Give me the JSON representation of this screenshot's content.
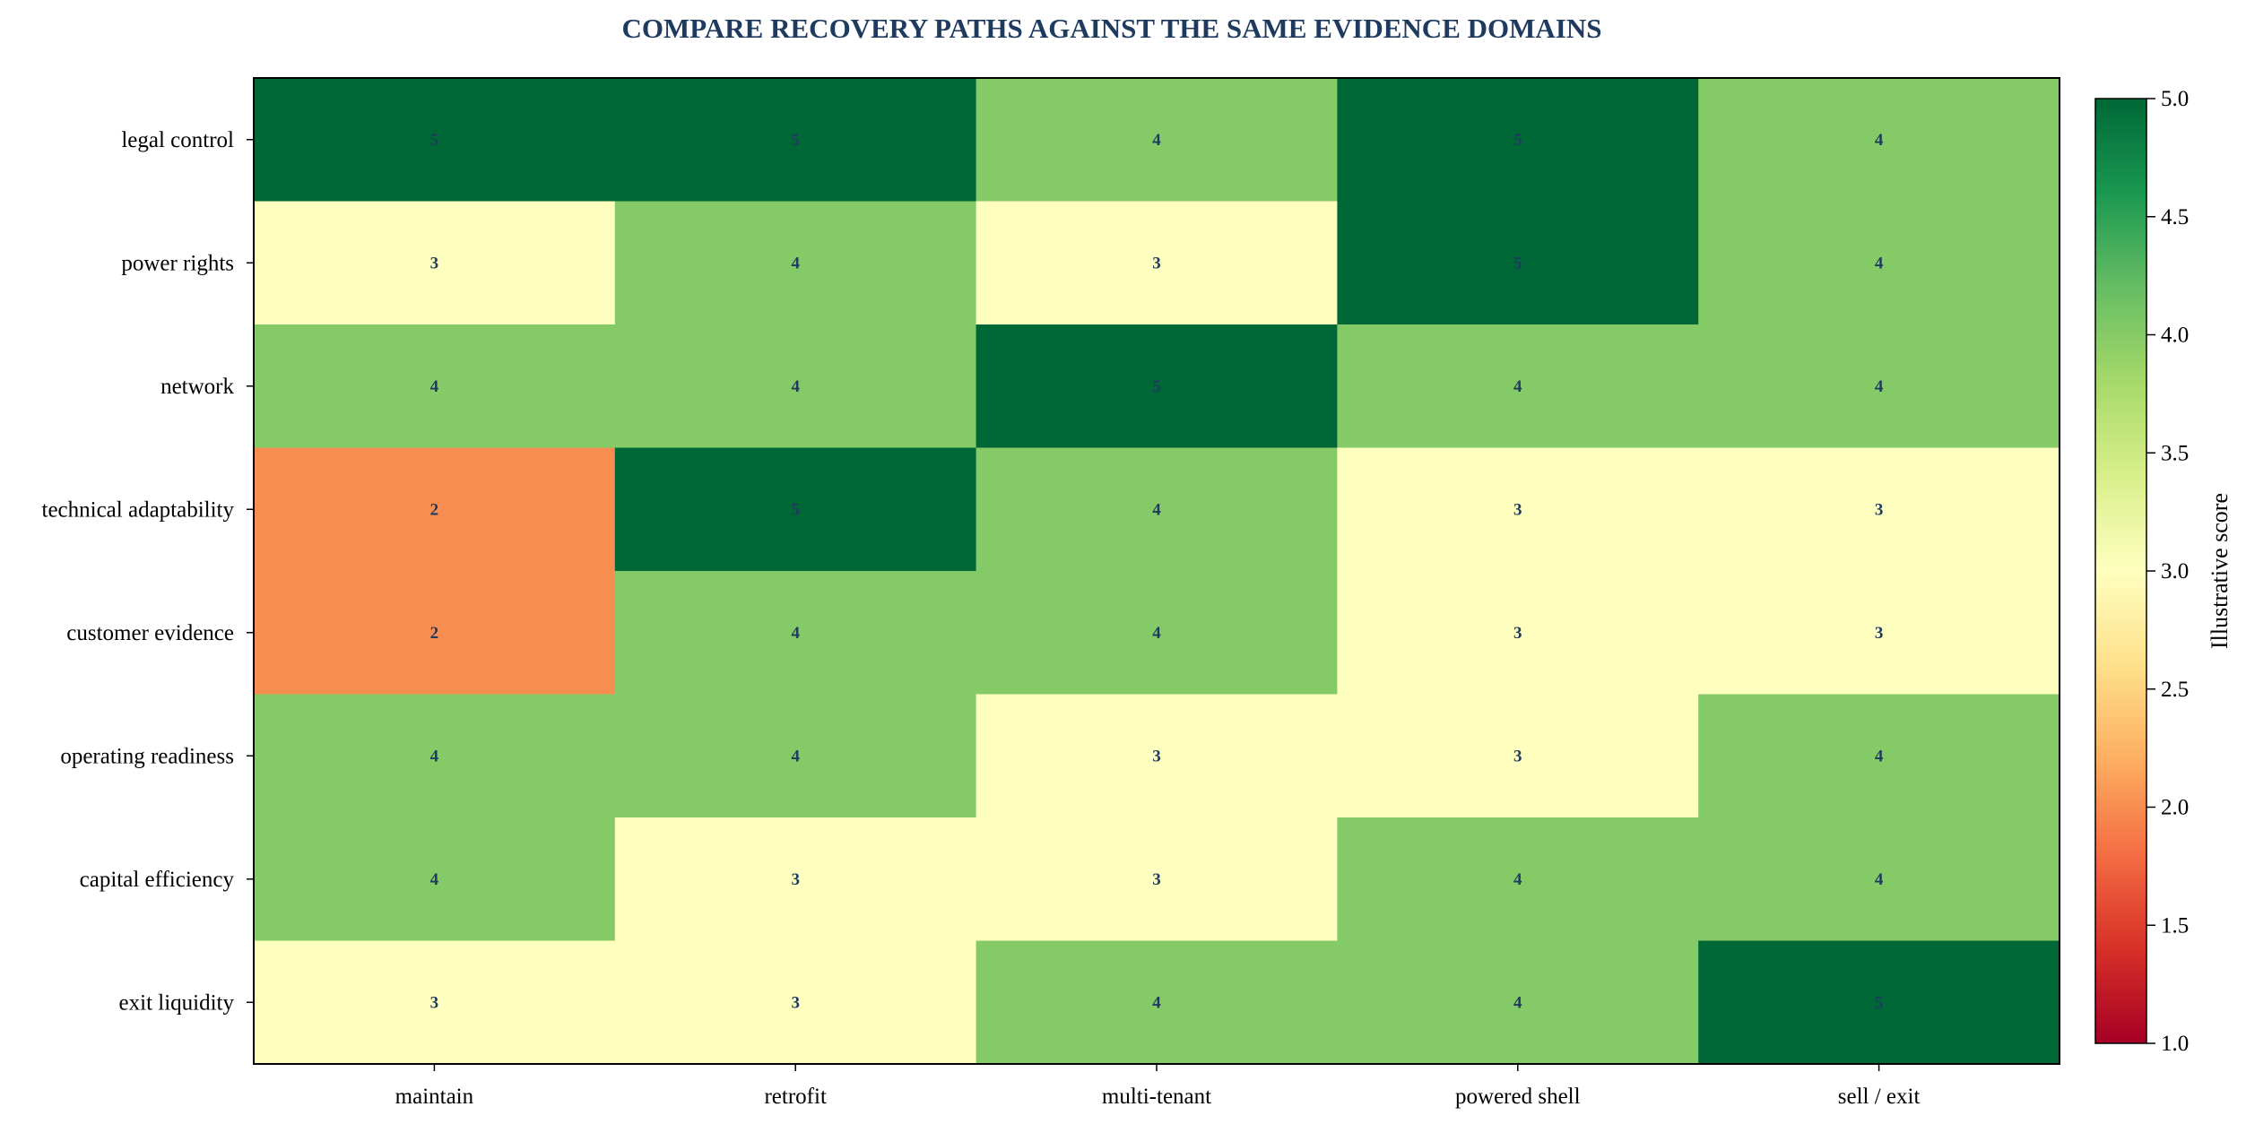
{
  "chart_data": {
    "type": "heatmap",
    "title": "COMPARE RECOVERY PATHS AGAINST THE SAME EVIDENCE DOMAINS",
    "columns": [
      "maintain",
      "retrofit",
      "multi-tenant",
      "powered shell",
      "sell / exit"
    ],
    "rows": [
      "legal control",
      "power rights",
      "network",
      "technical adaptability",
      "customer evidence",
      "operating readiness",
      "capital efficiency",
      "exit liquidity"
    ],
    "values": [
      [
        5,
        5,
        4,
        5,
        4
      ],
      [
        3,
        4,
        3,
        5,
        4
      ],
      [
        4,
        4,
        5,
        4,
        4
      ],
      [
        2,
        5,
        4,
        3,
        3
      ],
      [
        2,
        4,
        4,
        3,
        3
      ],
      [
        4,
        4,
        3,
        3,
        4
      ],
      [
        4,
        3,
        3,
        4,
        4
      ],
      [
        3,
        3,
        4,
        4,
        5
      ]
    ],
    "colorbar": {
      "label": "Illustrative score",
      "min": 1.0,
      "max": 5.0,
      "ticks": [
        "1.0",
        "1.5",
        "2.0",
        "2.5",
        "3.0",
        "3.5",
        "4.0",
        "4.5",
        "5.0"
      ],
      "colormap": "RdYlGn"
    },
    "colors": {
      "score_5": "#006837",
      "score_4": "#84ca66",
      "score_3": "#fefebe",
      "score_2": "#f88d52",
      "title": "#1f3a5f",
      "cell_text": "#1f3a5f"
    }
  }
}
